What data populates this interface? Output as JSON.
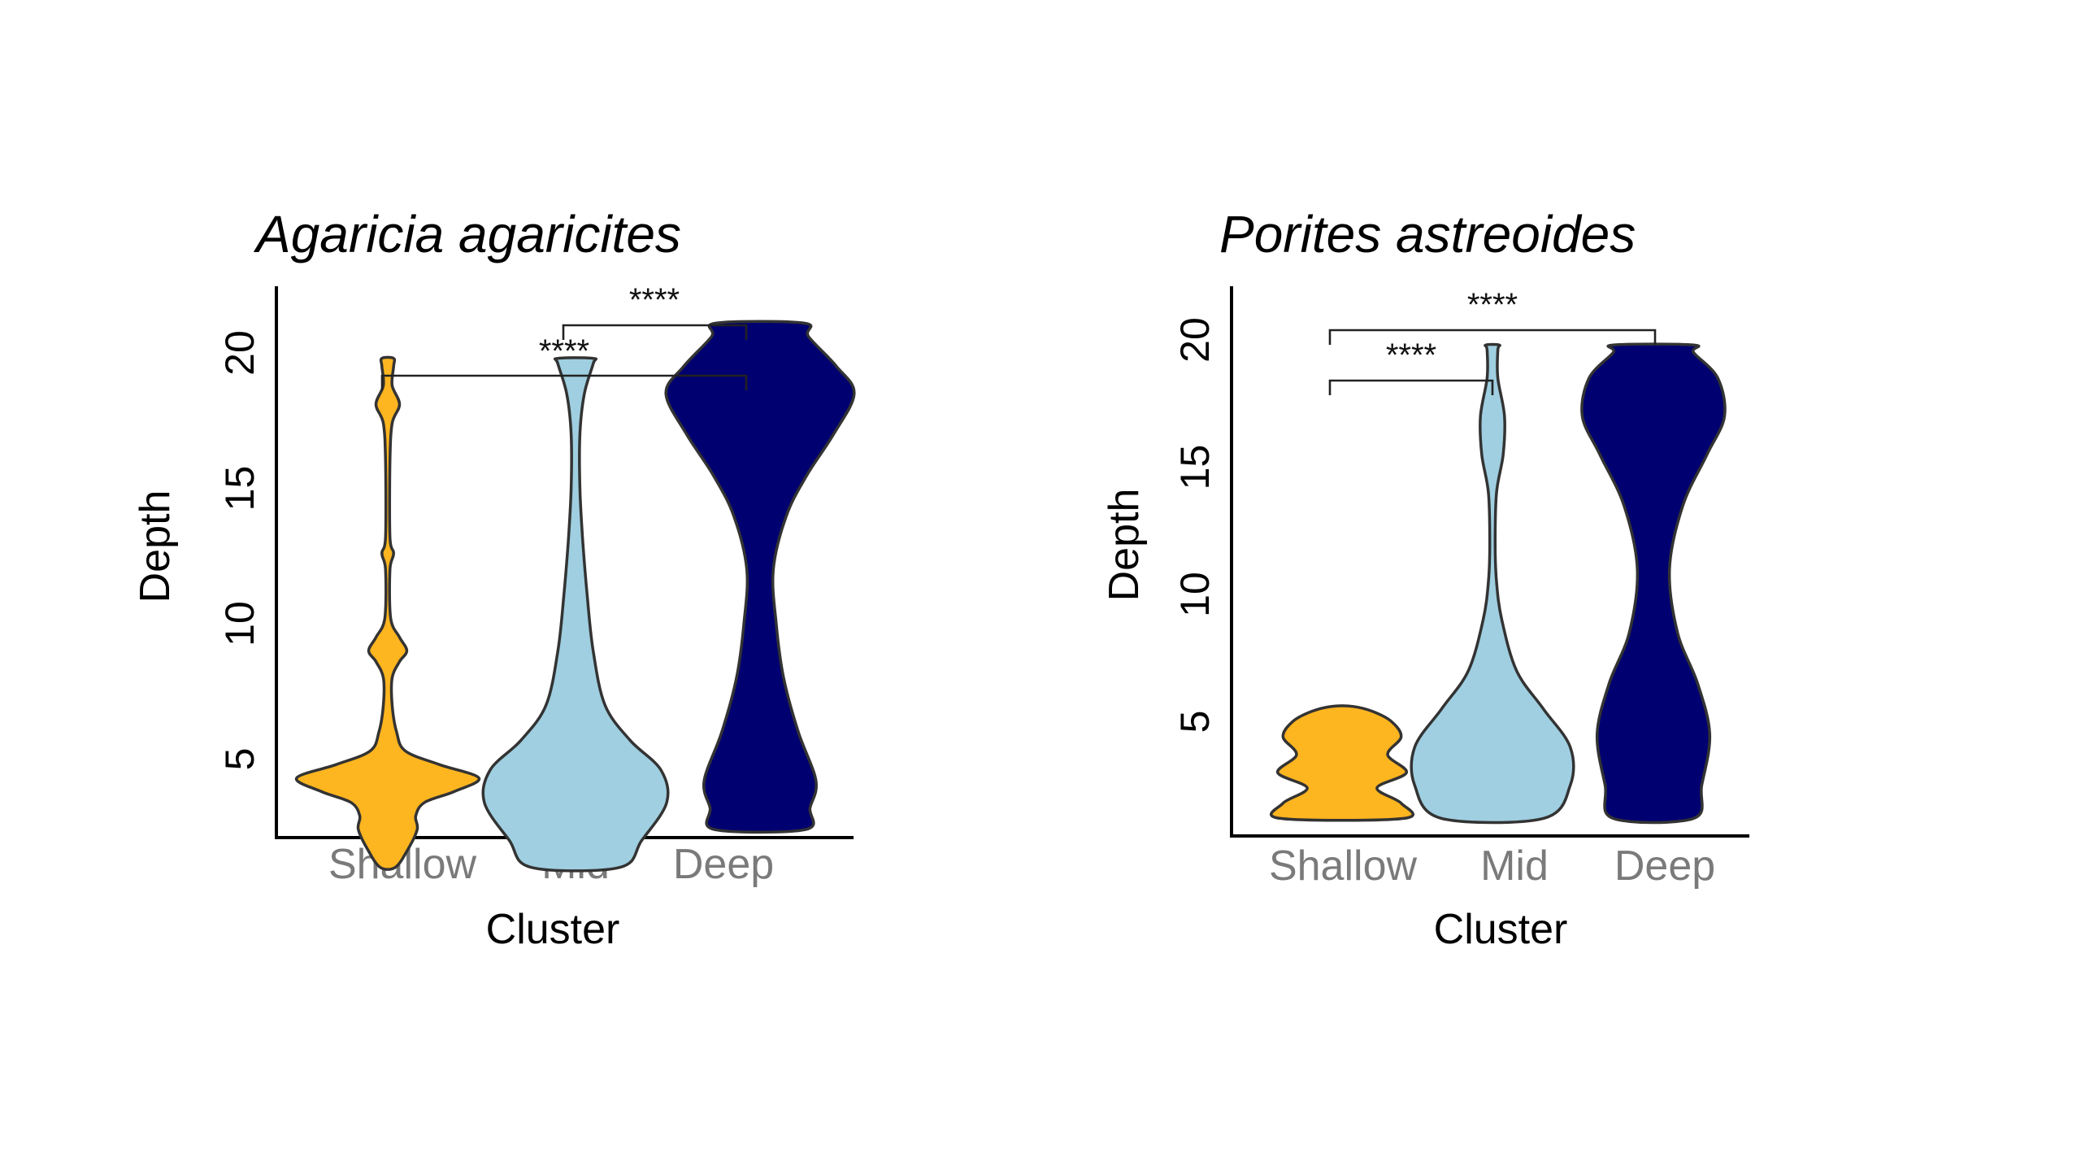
{
  "chart_data": [
    {
      "type": "violin",
      "title": "Agaricia agaricites",
      "xlabel": "Cluster",
      "ylabel": "Depth",
      "categories": [
        "Shallow",
        "Mid",
        "Deep"
      ],
      "yticks": [
        5,
        10,
        15,
        20
      ],
      "ylim": [
        0,
        28
      ],
      "grid": false,
      "colors": [
        "#FDB520",
        "#9FCFE0",
        "#000070"
      ],
      "violins": [
        {
          "category": "Shallow",
          "profile": [
            [
              1,
              0.05
            ],
            [
              1.6,
              0.13
            ],
            [
              2.4,
              0.2
            ],
            [
              2.9,
              0.19
            ],
            [
              3.4,
              0.25
            ],
            [
              3.8,
              0.45
            ],
            [
              4.3,
              0.62
            ],
            [
              4.8,
              0.35
            ],
            [
              5.3,
              0.12
            ],
            [
              6.0,
              0.06
            ],
            [
              7.0,
              0.03
            ],
            [
              8.0,
              0.03
            ],
            [
              8.6,
              0.08
            ],
            [
              9.0,
              0.13
            ],
            [
              9.5,
              0.08
            ],
            [
              10.2,
              0.02
            ],
            [
              12.0,
              0.015
            ],
            [
              12.6,
              0.04
            ],
            [
              13.2,
              0.015
            ],
            [
              16.0,
              0.015
            ],
            [
              17.4,
              0.03
            ],
            [
              18.1,
              0.08
            ],
            [
              18.8,
              0.03
            ],
            [
              19.5,
              0.04
            ],
            [
              19.8,
              0.04
            ]
          ]
        },
        {
          "category": "Mid",
          "profile": [
            [
              1,
              0.3
            ],
            [
              2.0,
              0.45
            ],
            [
              3.4,
              0.62
            ],
            [
              4.6,
              0.58
            ],
            [
              5.7,
              0.37
            ],
            [
              7.0,
              0.2
            ],
            [
              9.0,
              0.12
            ],
            [
              11.0,
              0.08
            ],
            [
              13.0,
              0.05
            ],
            [
              15.0,
              0.03
            ],
            [
              17.0,
              0.03
            ],
            [
              18.5,
              0.06
            ],
            [
              19.6,
              0.12
            ],
            [
              19.8,
              0.12
            ]
          ]
        },
        {
          "category": "Deep",
          "profile": [
            [
              2.4,
              0.31
            ],
            [
              3.2,
              0.34
            ],
            [
              4.2,
              0.38
            ],
            [
              6.0,
              0.26
            ],
            [
              8.0,
              0.16
            ],
            [
              10.0,
              0.11
            ],
            [
              12.0,
              0.09
            ],
            [
              14.0,
              0.18
            ],
            [
              15.5,
              0.32
            ],
            [
              17.0,
              0.5
            ],
            [
              18.5,
              0.64
            ],
            [
              19.5,
              0.52
            ],
            [
              20.6,
              0.33
            ],
            [
              21.1,
              0.3
            ]
          ]
        }
      ],
      "comparisons": [
        {
          "from": "Mid",
          "to": "Deep",
          "label": "****"
        },
        {
          "from": "Shallow",
          "to": "Deep",
          "label": "****"
        }
      ]
    },
    {
      "type": "violin",
      "title": "Porites astreoides",
      "xlabel": "Cluster",
      "ylabel": "Depth",
      "categories": [
        "Shallow",
        "Mid",
        "Deep"
      ],
      "yticks": [
        5,
        10,
        15,
        20
      ],
      "ylim": [
        0,
        28
      ],
      "grid": false,
      "colors": [
        "#FDB520",
        "#9FCFE0",
        "#000070"
      ],
      "violins": [
        {
          "category": "Shallow",
          "profile": [
            [
              1.2,
              0.46
            ],
            [
              1.8,
              0.44
            ],
            [
              2.4,
              0.26
            ],
            [
              3.0,
              0.48
            ],
            [
              3.7,
              0.34
            ],
            [
              4.4,
              0.44
            ],
            [
              5.0,
              0.37
            ],
            [
              5.4,
              0.23
            ],
            [
              5.6,
              0.08
            ]
          ]
        },
        {
          "category": "Mid",
          "profile": [
            [
              1.2,
              0.38
            ],
            [
              2.5,
              0.58
            ],
            [
              4.0,
              0.58
            ],
            [
              5.5,
              0.38
            ],
            [
              7.0,
              0.18
            ],
            [
              9.0,
              0.07
            ],
            [
              10.5,
              0.03
            ],
            [
              12.0,
              0.02
            ],
            [
              14.0,
              0.03
            ],
            [
              15.5,
              0.08
            ],
            [
              17.0,
              0.09
            ],
            [
              18.5,
              0.04
            ],
            [
              19.6,
              0.04
            ],
            [
              19.8,
              0.05
            ]
          ]
        },
        {
          "category": "Deep",
          "profile": [
            [
              1.2,
              0.3
            ],
            [
              2.5,
              0.36
            ],
            [
              4.5,
              0.42
            ],
            [
              6.5,
              0.33
            ],
            [
              8.5,
              0.18
            ],
            [
              11.0,
              0.12
            ],
            [
              13.5,
              0.22
            ],
            [
              15.5,
              0.4
            ],
            [
              17.0,
              0.53
            ],
            [
              18.5,
              0.48
            ],
            [
              19.5,
              0.3
            ],
            [
              19.8,
              0.3
            ]
          ]
        }
      ],
      "comparisons": [
        {
          "from": "Shallow",
          "to": "Deep",
          "label": "****"
        },
        {
          "from": "Shallow",
          "to": "Mid",
          "label": "****"
        }
      ]
    }
  ]
}
